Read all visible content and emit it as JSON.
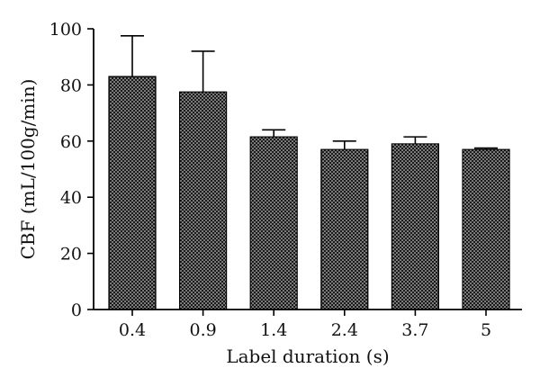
{
  "chart_data": {
    "type": "bar",
    "xlabel": "Label duration (s)",
    "ylabel": "CBF (mL/100g/min)",
    "categories": [
      "0.4",
      "0.9",
      "1.4",
      "2.4",
      "3.7",
      "5"
    ],
    "values": [
      83,
      77.5,
      61.5,
      57,
      59,
      57
    ],
    "error_upper": [
      14.5,
      14.5,
      2.5,
      3,
      2.5,
      0.5
    ],
    "ylim": [
      0,
      100
    ],
    "yticks": [
      0,
      20,
      40,
      60,
      80,
      100
    ],
    "ytick_labels": [
      "0",
      "20",
      "40",
      "60",
      "80",
      "100"
    ],
    "grid": false,
    "legend": "none",
    "bar_fill": "dotted-dark",
    "colors": {
      "bar": "#1a1a1a",
      "dots": "#ffffff",
      "axis": "#000000"
    }
  }
}
